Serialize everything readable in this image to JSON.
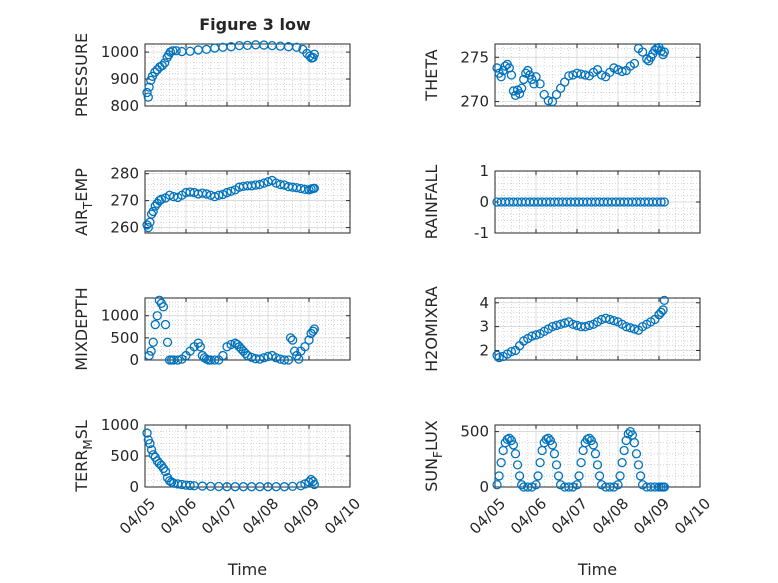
{
  "figure": {
    "title": "Figure 3 low",
    "colors": {
      "marker": "#0072bd",
      "axis": "#262626",
      "grid": "#d0d0d0"
    }
  },
  "chart_data": [
    {
      "type": "scatter",
      "ylabel": "PRESSURE",
      "ylabel_sub": "",
      "ylim": [
        800,
        1030
      ],
      "yticks": [
        800,
        900,
        1000
      ],
      "ytick_labels": [
        "800",
        "900",
        "1000"
      ],
      "xlim": [
        0,
        5
      ],
      "xticks": [
        0,
        1,
        2,
        3,
        4,
        5
      ],
      "xtick_labels": [
        "04/05",
        "04/06",
        "04/07",
        "04/08",
        "04/09",
        "04/10"
      ],
      "xlabel": "",
      "grid": true,
      "minor_grid": true,
      "x": [
        0.05,
        0.08,
        0.1,
        0.14,
        0.18,
        0.24,
        0.3,
        0.36,
        0.42,
        0.48,
        0.54,
        0.58,
        0.62,
        0.68,
        0.76,
        0.9,
        1.1,
        1.3,
        1.5,
        1.7,
        1.9,
        2.1,
        2.3,
        2.5,
        2.7,
        2.9,
        3.1,
        3.3,
        3.5,
        3.7,
        3.85,
        3.95,
        4.02,
        4.06,
        4.1,
        4.13
      ],
      "y": [
        850,
        833,
        870,
        895,
        910,
        925,
        935,
        945,
        950,
        960,
        980,
        990,
        1000,
        1005,
        1005,
        1002,
        1003,
        1008,
        1010,
        1015,
        1018,
        1020,
        1024,
        1025,
        1027,
        1026,
        1024,
        1022,
        1020,
        1018,
        1010,
        995,
        985,
        978,
        980,
        992
      ]
    },
    {
      "type": "scatter",
      "ylabel": "THETA",
      "ylabel_sub": "",
      "ylim": [
        269.5,
        276.5
      ],
      "yticks": [
        270,
        275
      ],
      "ytick_labels": [
        "270",
        "275"
      ],
      "xlim": [
        0,
        5
      ],
      "xticks": [
        0,
        1,
        2,
        3,
        4,
        5
      ],
      "xtick_labels": [
        "04/05",
        "04/06",
        "04/07",
        "04/08",
        "04/09",
        "04/10"
      ],
      "xlabel": "",
      "grid": true,
      "minor_grid": true,
      "x": [
        0.05,
        0.1,
        0.15,
        0.2,
        0.25,
        0.3,
        0.35,
        0.4,
        0.45,
        0.5,
        0.55,
        0.6,
        0.65,
        0.7,
        0.75,
        0.8,
        0.85,
        0.9,
        0.95,
        1.0,
        1.1,
        1.2,
        1.3,
        1.4,
        1.5,
        1.6,
        1.7,
        1.8,
        1.9,
        2.0,
        2.1,
        2.2,
        2.3,
        2.4,
        2.5,
        2.6,
        2.7,
        2.8,
        2.9,
        3.0,
        3.1,
        3.2,
        3.3,
        3.4,
        3.5,
        3.6,
        3.7,
        3.75,
        3.8,
        3.85,
        3.9,
        3.95,
        4.0,
        4.05,
        4.1,
        4.13
      ],
      "y": [
        273.8,
        273.2,
        272.8,
        273.5,
        274.0,
        274.2,
        273.8,
        273.0,
        271.2,
        270.7,
        271.3,
        270.9,
        271.5,
        272.5,
        273.2,
        273.5,
        273.0,
        272.5,
        272.0,
        272.8,
        272.0,
        270.8,
        270.1,
        270.0,
        270.8,
        271.5,
        272.2,
        272.9,
        273.0,
        273.2,
        273.1,
        273.0,
        272.9,
        273.3,
        273.6,
        273.0,
        272.8,
        273.3,
        273.8,
        273.6,
        273.4,
        273.5,
        274.0,
        274.3,
        276.0,
        275.6,
        274.8,
        274.6,
        275.0,
        275.4,
        275.8,
        276.0,
        276.1,
        275.7,
        275.3,
        275.6
      ]
    },
    {
      "type": "scatter",
      "ylabel": "AIR",
      "ylabel_sub": "T",
      "ylabel_rest": "EMP",
      "ylim": [
        258,
        281
      ],
      "yticks": [
        260,
        270,
        280
      ],
      "ytick_labels": [
        "260",
        "270",
        "280"
      ],
      "xlim": [
        0,
        5
      ],
      "xticks": [
        0,
        1,
        2,
        3,
        4,
        5
      ],
      "xtick_labels": [
        "04/05",
        "04/06",
        "04/07",
        "04/08",
        "04/09",
        "04/10"
      ],
      "xlabel": "",
      "grid": true,
      "minor_grid": true,
      "x": [
        0.05,
        0.08,
        0.12,
        0.16,
        0.2,
        0.25,
        0.3,
        0.35,
        0.4,
        0.5,
        0.6,
        0.7,
        0.8,
        0.9,
        1.0,
        1.1,
        1.2,
        1.3,
        1.4,
        1.5,
        1.6,
        1.7,
        1.8,
        1.9,
        2.0,
        2.1,
        2.2,
        2.3,
        2.4,
        2.5,
        2.6,
        2.7,
        2.8,
        2.9,
        3.0,
        3.1,
        3.2,
        3.3,
        3.4,
        3.5,
        3.6,
        3.7,
        3.8,
        3.9,
        4.0,
        4.05,
        4.1,
        4.13
      ],
      "y": [
        261,
        260,
        262,
        265,
        266,
        268,
        269,
        270,
        270.5,
        271,
        272,
        271.5,
        271.2,
        272,
        273,
        273.2,
        273,
        272.5,
        272.8,
        272.5,
        272,
        271.5,
        272,
        272.3,
        273,
        273.5,
        274,
        275,
        275.3,
        275.5,
        275.5,
        275.8,
        276,
        276.5,
        277,
        277.5,
        276.5,
        276,
        275.8,
        275.2,
        275,
        274.8,
        274.5,
        274.2,
        274,
        274.3,
        274.5,
        274.6
      ]
    },
    {
      "type": "scatter",
      "ylabel": "RAINFALL",
      "ylabel_sub": "",
      "ylim": [
        -1,
        1
      ],
      "yticks": [
        -1,
        0,
        1
      ],
      "ytick_labels": [
        "-1",
        "0",
        "1"
      ],
      "xlim": [
        0,
        5
      ],
      "xticks": [
        0,
        1,
        2,
        3,
        4,
        5
      ],
      "xtick_labels": [
        "04/05",
        "04/06",
        "04/07",
        "04/08",
        "04/09",
        "04/10"
      ],
      "xlabel": "",
      "grid": true,
      "minor_grid": true,
      "x": [
        0.05,
        0.15,
        0.25,
        0.35,
        0.45,
        0.55,
        0.65,
        0.75,
        0.85,
        0.95,
        1.05,
        1.15,
        1.25,
        1.35,
        1.45,
        1.55,
        1.65,
        1.75,
        1.85,
        1.95,
        2.05,
        2.15,
        2.25,
        2.35,
        2.45,
        2.55,
        2.65,
        2.75,
        2.85,
        2.95,
        3.05,
        3.15,
        3.25,
        3.35,
        3.45,
        3.55,
        3.65,
        3.75,
        3.85,
        3.95,
        4.05,
        4.13
      ],
      "y": [
        0,
        0,
        0,
        0,
        0,
        0,
        0,
        0,
        0,
        0,
        0,
        0,
        0,
        0,
        0,
        0,
        0,
        0,
        0,
        0,
        0,
        0,
        0,
        0,
        0,
        0,
        0,
        0,
        0,
        0,
        0,
        0,
        0,
        0,
        0,
        0,
        0,
        0,
        0,
        0,
        0,
        0
      ]
    },
    {
      "type": "scatter",
      "ylabel": "MIXDEPTH",
      "ylabel_sub": "",
      "ylim": [
        0,
        1400
      ],
      "yticks": [
        0,
        500,
        1000
      ],
      "ytick_labels": [
        "0",
        "500",
        "1000"
      ],
      "xlim": [
        0,
        5
      ],
      "xticks": [
        0,
        1,
        2,
        3,
        4,
        5
      ],
      "xtick_labels": [
        "04/05",
        "04/06",
        "04/07",
        "04/08",
        "04/09",
        "04/10"
      ],
      "xlabel": "",
      "grid": true,
      "minor_grid": true,
      "x": [
        0.1,
        0.15,
        0.2,
        0.25,
        0.3,
        0.35,
        0.4,
        0.45,
        0.5,
        0.55,
        0.6,
        0.65,
        0.7,
        0.8,
        0.9,
        1.0,
        1.1,
        1.2,
        1.3,
        1.35,
        1.4,
        1.45,
        1.5,
        1.55,
        1.6,
        1.7,
        1.8,
        1.9,
        2.0,
        2.1,
        2.2,
        2.25,
        2.3,
        2.35,
        2.4,
        2.45,
        2.5,
        2.6,
        2.7,
        2.8,
        2.9,
        3.0,
        3.1,
        3.2,
        3.3,
        3.4,
        3.5,
        3.55,
        3.6,
        3.65,
        3.7,
        3.75,
        3.8,
        3.9,
        4.0,
        4.05,
        4.1,
        4.13
      ],
      "y": [
        100,
        200,
        400,
        800,
        1000,
        1350,
        1280,
        1200,
        800,
        400,
        0,
        0,
        0,
        0,
        20,
        100,
        200,
        300,
        380,
        300,
        100,
        50,
        20,
        0,
        0,
        0,
        0,
        100,
        300,
        350,
        380,
        350,
        300,
        250,
        200,
        150,
        100,
        60,
        30,
        20,
        50,
        80,
        100,
        50,
        20,
        0,
        0,
        500,
        450,
        200,
        100,
        20,
        200,
        300,
        450,
        600,
        650,
        700
      ]
    },
    {
      "type": "scatter",
      "ylabel": "H2OMIXRA",
      "ylabel_sub": "",
      "ylim": [
        1.6,
        4.2
      ],
      "yticks": [
        2,
        3,
        4
      ],
      "ytick_labels": [
        "2",
        "3",
        "4"
      ],
      "xlim": [
        0,
        5
      ],
      "xticks": [
        0,
        1,
        2,
        3,
        4,
        5
      ],
      "xtick_labels": [
        "04/05",
        "04/06",
        "04/07",
        "04/08",
        "04/09",
        "04/10"
      ],
      "xlabel": "",
      "grid": true,
      "minor_grid": true,
      "x": [
        0.05,
        0.1,
        0.2,
        0.3,
        0.4,
        0.5,
        0.6,
        0.7,
        0.8,
        0.9,
        1.0,
        1.1,
        1.2,
        1.3,
        1.4,
        1.5,
        1.6,
        1.7,
        1.8,
        1.9,
        2.0,
        2.1,
        2.2,
        2.3,
        2.4,
        2.5,
        2.6,
        2.7,
        2.8,
        2.9,
        3.0,
        3.1,
        3.2,
        3.3,
        3.4,
        3.5,
        3.6,
        3.7,
        3.8,
        3.9,
        4.0,
        4.05,
        4.1,
        4.13
      ],
      "y": [
        1.8,
        1.7,
        1.75,
        1.85,
        1.95,
        2.0,
        2.2,
        2.4,
        2.5,
        2.6,
        2.65,
        2.7,
        2.8,
        2.9,
        3.0,
        3.05,
        3.1,
        3.15,
        3.2,
        3.1,
        3.05,
        3.0,
        3.0,
        3.05,
        3.1,
        3.2,
        3.3,
        3.35,
        3.3,
        3.25,
        3.2,
        3.1,
        3.0,
        2.95,
        2.9,
        2.85,
        3.0,
        3.1,
        3.2,
        3.3,
        3.5,
        3.6,
        3.7,
        4.1
      ]
    },
    {
      "type": "scatter",
      "ylabel": "TERR",
      "ylabel_sub": "M",
      "ylabel_rest": "SL",
      "ylim": [
        0,
        1000
      ],
      "yticks": [
        0,
        500,
        1000
      ],
      "ytick_labels": [
        "0",
        "500",
        "1000"
      ],
      "xlim": [
        0,
        5
      ],
      "xticks": [
        0,
        1,
        2,
        3,
        4,
        5
      ],
      "xtick_labels": [
        "04/05",
        "04/06",
        "04/07",
        "04/08",
        "04/09",
        "04/10"
      ],
      "xlabel": "Time",
      "grid": true,
      "minor_grid": true,
      "x": [
        0.05,
        0.08,
        0.12,
        0.16,
        0.2,
        0.25,
        0.3,
        0.35,
        0.4,
        0.45,
        0.5,
        0.55,
        0.6,
        0.65,
        0.7,
        0.8,
        0.9,
        1.0,
        1.1,
        1.2,
        1.4,
        1.6,
        1.8,
        2.0,
        2.2,
        2.4,
        2.6,
        2.8,
        3.0,
        3.2,
        3.4,
        3.6,
        3.8,
        3.9,
        4.0,
        4.05,
        4.1,
        4.13
      ],
      "y": [
        870,
        760,
        700,
        600,
        520,
        480,
        420,
        380,
        350,
        300,
        250,
        150,
        100,
        80,
        60,
        50,
        40,
        30,
        25,
        20,
        15,
        10,
        8,
        5,
        5,
        5,
        5,
        5,
        5,
        5,
        5,
        10,
        20,
        50,
        80,
        120,
        90,
        40
      ]
    },
    {
      "type": "scatter",
      "ylabel": "SUN",
      "ylabel_sub": "F",
      "ylabel_rest": "LUX",
      "ylim": [
        0,
        560
      ],
      "yticks": [
        0,
        500
      ],
      "ytick_labels": [
        "0",
        "500"
      ],
      "xlim": [
        0,
        5
      ],
      "xticks": [
        0,
        1,
        2,
        3,
        4,
        5
      ],
      "xtick_labels": [
        "04/05",
        "04/06",
        "04/07",
        "04/08",
        "04/09",
        "04/10"
      ],
      "xlabel": "Time",
      "grid": true,
      "minor_grid": true,
      "x": [
        0.05,
        0.1,
        0.15,
        0.2,
        0.25,
        0.3,
        0.35,
        0.4,
        0.45,
        0.5,
        0.55,
        0.6,
        0.65,
        0.7,
        0.8,
        0.9,
        1.0,
        1.05,
        1.1,
        1.15,
        1.2,
        1.25,
        1.3,
        1.35,
        1.4,
        1.45,
        1.5,
        1.55,
        1.6,
        1.7,
        1.8,
        1.9,
        2.0,
        2.05,
        2.1,
        2.15,
        2.2,
        2.25,
        2.3,
        2.35,
        2.4,
        2.45,
        2.5,
        2.55,
        2.6,
        2.7,
        2.8,
        2.9,
        3.0,
        3.05,
        3.1,
        3.15,
        3.2,
        3.25,
        3.3,
        3.35,
        3.4,
        3.45,
        3.5,
        3.55,
        3.6,
        3.7,
        3.8,
        3.9,
        4.0,
        4.05,
        4.1,
        4.13
      ],
      "y": [
        20,
        100,
        220,
        330,
        400,
        430,
        440,
        420,
        380,
        300,
        200,
        100,
        20,
        0,
        0,
        0,
        20,
        100,
        220,
        330,
        400,
        430,
        440,
        420,
        380,
        300,
        200,
        100,
        20,
        0,
        0,
        0,
        20,
        100,
        220,
        330,
        400,
        430,
        440,
        420,
        380,
        300,
        200,
        100,
        20,
        0,
        0,
        0,
        20,
        100,
        220,
        330,
        420,
        480,
        500,
        470,
        400,
        300,
        200,
        100,
        20,
        0,
        0,
        0,
        0,
        0,
        0,
        0
      ]
    }
  ]
}
